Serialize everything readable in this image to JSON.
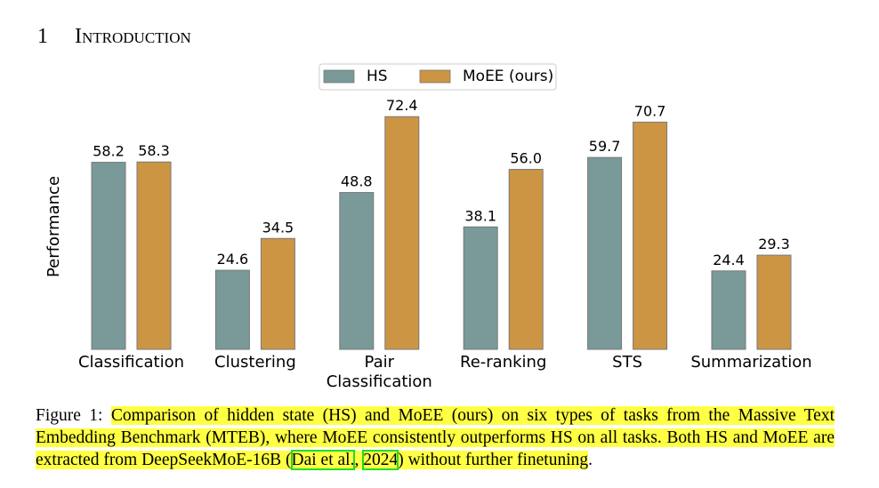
{
  "heading": {
    "number": "1",
    "title": "Introduction"
  },
  "chart_data": {
    "type": "bar",
    "categories": [
      "Classification",
      "Clustering",
      "Pair\nClassification",
      "Re-ranking",
      "STS",
      "Summarization"
    ],
    "series": [
      {
        "name": "HS",
        "color": "#7a9999",
        "values": [
          58.2,
          24.6,
          48.8,
          38.1,
          59.7,
          24.4
        ],
        "value_labels": [
          "58.2",
          "24.6",
          "48.8",
          "38.1",
          "59.7",
          "24.4"
        ]
      },
      {
        "name": "MoEE (ours)",
        "color": "#cc9544",
        "values": [
          58.3,
          34.5,
          72.4,
          56.0,
          70.7,
          29.3
        ],
        "value_labels": [
          "58.3",
          "34.5",
          "72.4",
          "56.0",
          "70.7",
          "29.3"
        ]
      }
    ],
    "ylabel": "Performance",
    "ylim": [
      0,
      78
    ],
    "legend": "top"
  },
  "caption": {
    "label": "Figure 1:",
    "text": "Comparison of hidden state (HS) and MoEE (ours) on six types of tasks from the Massive Text Embedding Benchmark (MTEB), where MoEE consistently outperforms HS on all tasks. Both HS and MoEE are extracted from DeepSeekMoE-16B (",
    "cite_author": "Dai et al.",
    "cite_sep": ", ",
    "cite_year": "2024",
    "text_after": ") without further finetuning",
    "end": "."
  }
}
